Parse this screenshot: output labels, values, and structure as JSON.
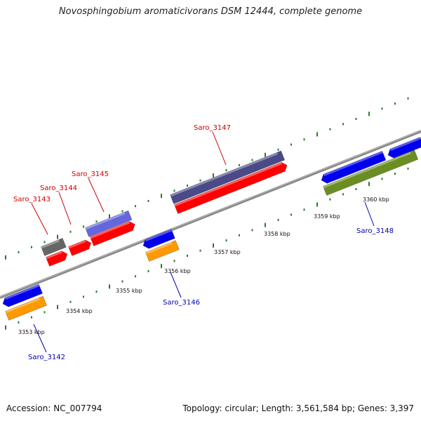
{
  "title": "Novosphingobium aromaticivorans DSM 12444, complete genome",
  "footer": {
    "accession": "Accession: NC_007794",
    "topology": "Topology: circular; Length: 3,561,584 bp; Genes: 3,397"
  },
  "colors": {
    "backbone": "#888888",
    "ticks": "#2a7a2a",
    "cds_forward": "#ff0000",
    "cds_reverse": "#0000ee",
    "gene_blue_purple": "#6666dd",
    "gene_dark_purple": "#4a4a88",
    "gene_gray": "#666666",
    "gene_orange": "#ff9900",
    "gene_olive": "#6b8e23",
    "label_forward": "#cc0000",
    "label_reverse": "#0000aa"
  },
  "tick_labels": [
    "3353 kbp",
    "3354 kbp",
    "3355 kbp",
    "3356 kbp",
    "3357 kbp",
    "3358 kbp",
    "3359 kbp",
    "3360 kbp"
  ],
  "genes": [
    {
      "label": "Saro_3142",
      "strand": "reverse"
    },
    {
      "label": "Saro_3143",
      "strand": "forward"
    },
    {
      "label": "Saro_3144",
      "strand": "forward"
    },
    {
      "label": "Saro_3145",
      "strand": "forward"
    },
    {
      "label": "Saro_3146",
      "strand": "reverse"
    },
    {
      "label": "Saro_3147",
      "strand": "forward"
    },
    {
      "label": "Saro_3148",
      "strand": "reverse"
    }
  ]
}
